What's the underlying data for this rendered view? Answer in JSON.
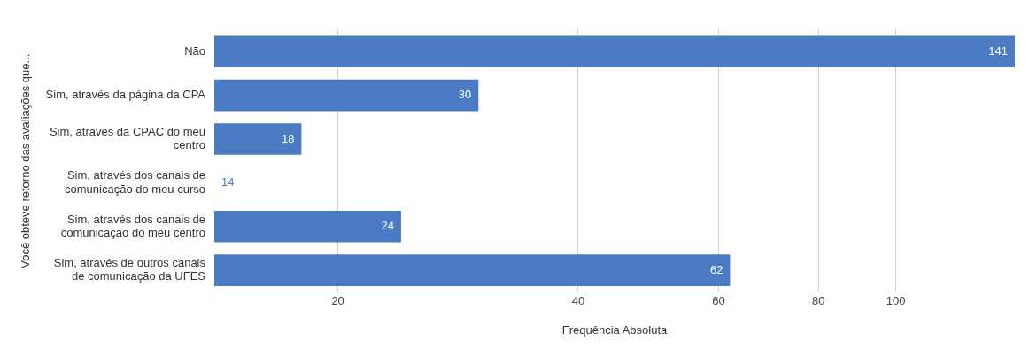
{
  "chart_data": {
    "type": "bar",
    "orientation": "horizontal",
    "ylabel": "Você obteve retorno das avaliações que...",
    "xlabel": "Frequência Absoluta",
    "categories": [
      "Não",
      "Sim, através da página da CPA",
      "Sim, através da CPAC do meu centro",
      "Sim, através dos canais de comunicação do meu curso",
      "Sim, através dos canais de comunicação do meu centro",
      "Sim, através de outros canais de comunicação da UFES"
    ],
    "values": [
      141,
      30,
      18,
      14,
      24,
      62
    ],
    "color": "#4a7bc4",
    "log": "x",
    "xlim": [
      14,
      141
    ],
    "xticks": [
      20,
      40,
      60,
      80,
      100
    ],
    "grid": "x",
    "data_labels": true,
    "legend": false
  }
}
